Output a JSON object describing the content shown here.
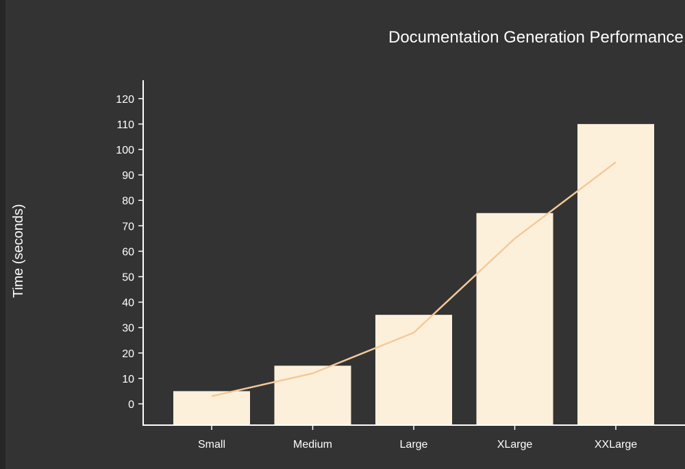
{
  "chart_data": {
    "type": "bar",
    "title": "Documentation Generation Performance",
    "xlabel": "",
    "ylabel": "Time (seconds)",
    "categories": [
      "Small",
      "Medium",
      "Large",
      "XLarge",
      "XXLarge"
    ],
    "series": [
      {
        "kind": "bar",
        "values": [
          5,
          15,
          35,
          75,
          110
        ]
      },
      {
        "kind": "line",
        "values": [
          3,
          12,
          28,
          65,
          95
        ]
      }
    ],
    "yticks": [
      0,
      10,
      20,
      30,
      40,
      50,
      60,
      70,
      80,
      90,
      100,
      110,
      120
    ],
    "ylim": [
      -8,
      128
    ],
    "grid": false,
    "colors": {
      "background": "#333333",
      "bar": "#fdf0db",
      "line": "#f5c99a",
      "text": "#ffffff"
    }
  }
}
